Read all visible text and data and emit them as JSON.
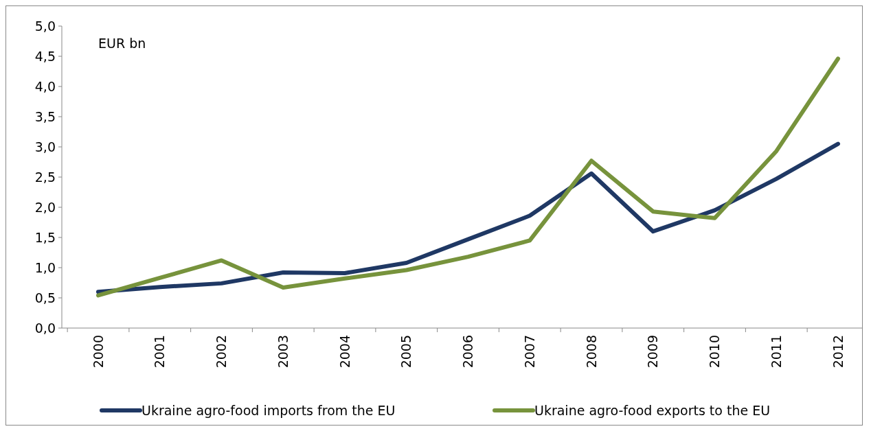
{
  "chart_data": {
    "type": "line",
    "ylabel": "EUR bn",
    "categories": [
      "2000",
      "2001",
      "2002",
      "2003",
      "2004",
      "2005",
      "2006",
      "2007",
      "2008",
      "2009",
      "2010",
      "2011",
      "2012"
    ],
    "series": [
      {
        "name": "Ukraine agro-food imports from the EU",
        "color": "#1f3864",
        "values": [
          0.6,
          0.68,
          0.74,
          0.92,
          0.91,
          1.08,
          1.47,
          1.86,
          2.56,
          1.6,
          1.95,
          2.47,
          3.05
        ]
      },
      {
        "name": "Ukraine agro-food exports to the EU",
        "color": "#77933c",
        "values": [
          0.54,
          0.83,
          1.12,
          0.67,
          0.82,
          0.96,
          1.18,
          1.45,
          2.77,
          1.93,
          1.82,
          2.93,
          4.46
        ]
      }
    ],
    "ylim": [
      0,
      5
    ],
    "yticks": [
      {
        "value": 0,
        "label": "0,0"
      },
      {
        "value": 0.5,
        "label": "0,5"
      },
      {
        "value": 1,
        "label": "1,0"
      },
      {
        "value": 1.5,
        "label": "1,5"
      },
      {
        "value": 2,
        "label": "2,0"
      },
      {
        "value": 2.5,
        "label": "2,5"
      },
      {
        "value": 3,
        "label": "3,0"
      },
      {
        "value": 3.5,
        "label": "3,5"
      },
      {
        "value": 4,
        "label": "4,0"
      },
      {
        "value": 4.5,
        "label": "4,5"
      },
      {
        "value": 5,
        "label": "5,0"
      }
    ],
    "grid": false,
    "legend": "bottom",
    "line_style": "solid"
  }
}
